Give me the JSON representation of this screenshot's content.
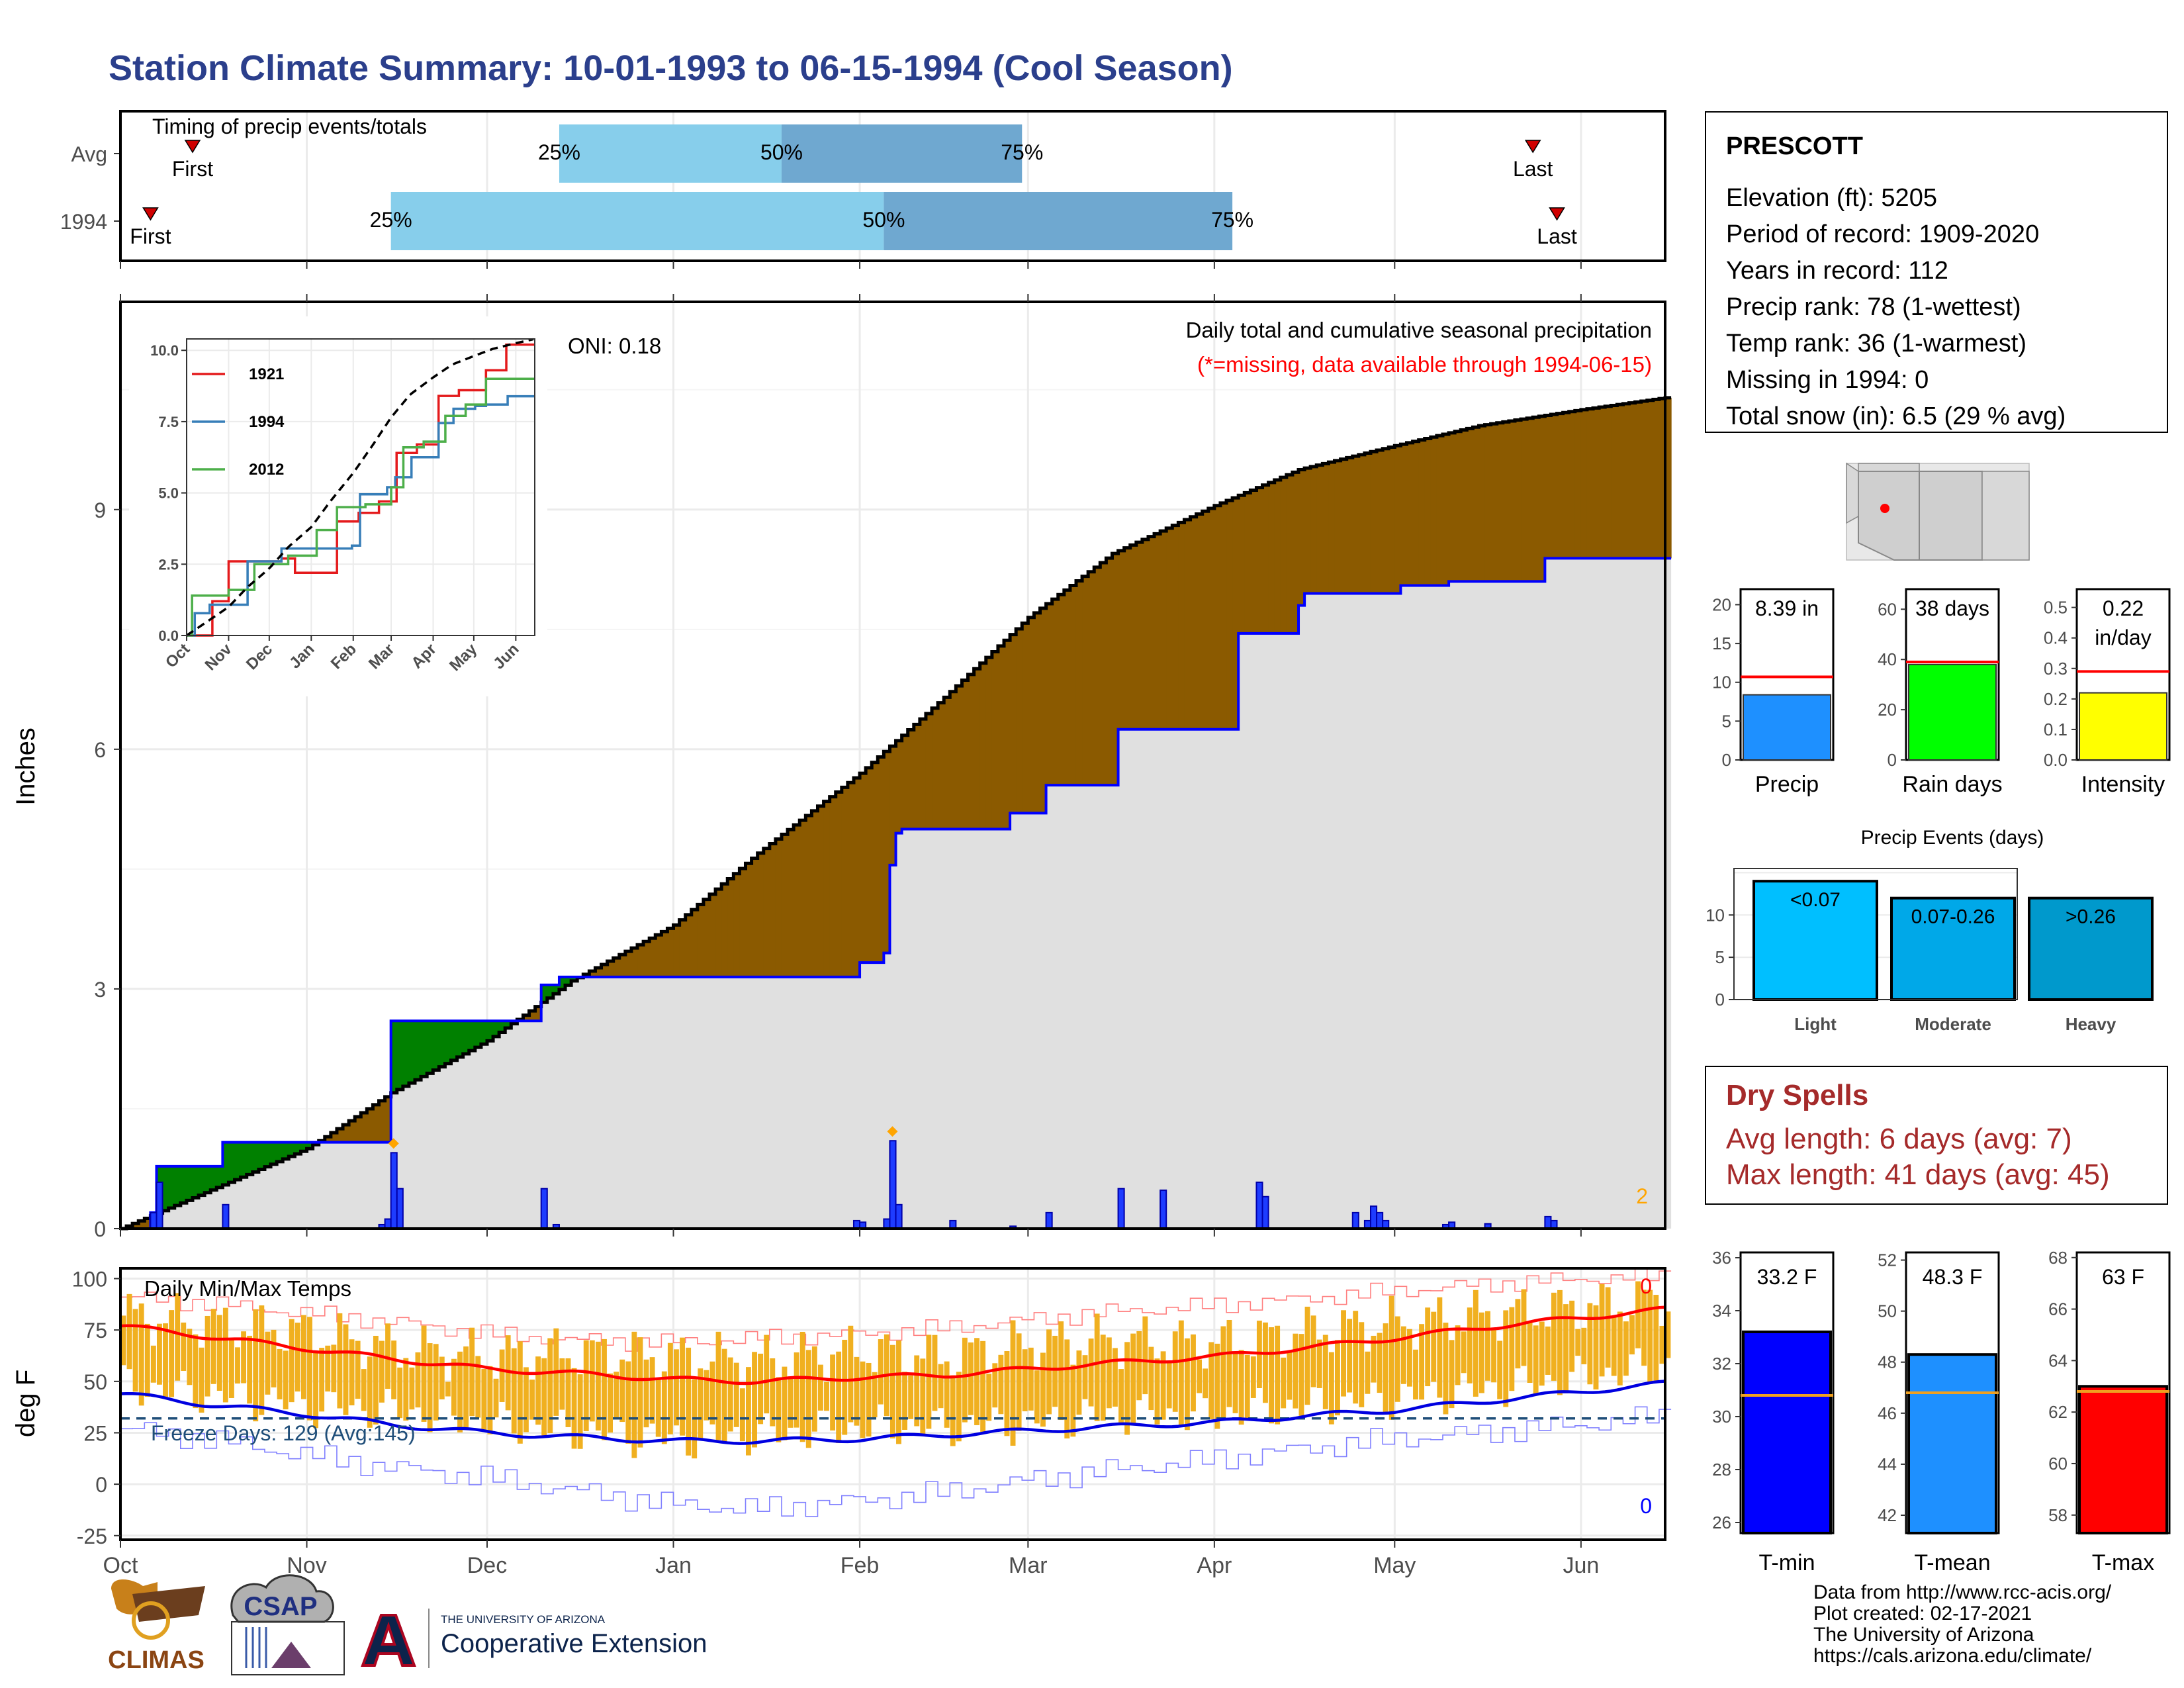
{
  "title": "Station Climate Summary: 10-01-1993 to 06-15-1994 (Cool Season)",
  "colors": {
    "title": "#2b3f8c",
    "q_light": "#87ceeb",
    "q_dark": "#6fa8d0",
    "brown": "#8b5a00",
    "green": "#008000",
    "grey_fill": "#e0e0e0",
    "blue": "#0000ff",
    "orange_bar": "#f0b020",
    "red": "#ff0000",
    "dry_spells": "#a52a2a"
  },
  "timing": {
    "title": "Timing of precip events/totals",
    "rows": [
      {
        "label": "Avg",
        "first_label": "First",
        "last_label": "Last",
        "first": "1993-10-13",
        "last": "1994-05-24",
        "q25": "1993-12-13",
        "q50": "1994-01-19",
        "q75": "1994-02-28",
        "q25_label": "25%",
        "q50_label": "50%",
        "q75_label": "75%"
      },
      {
        "label": "1994",
        "first_label": "First",
        "last_label": "Last",
        "first": "1993-10-06",
        "last": "1994-05-28",
        "q25": "1993-11-15",
        "q50": "1994-02-05",
        "q75": "1994-04-04",
        "q25_label": "25%",
        "q50_label": "50%",
        "q75_label": "75%"
      }
    ]
  },
  "precip_panel": {
    "title": "Daily total and cumulative seasonal precipitation",
    "subtitle": "(*=missing, data available through 1994-06-15)",
    "oni": "ONI: 0.18",
    "ylabel": "Inches",
    "yticks": [
      "0",
      "3",
      "6",
      "9"
    ],
    "corner_count": "2",
    "xticks": [
      "Oct",
      "Nov",
      "Dec",
      "Jan",
      "Feb",
      "Mar",
      "Apr",
      "May",
      "Jun"
    ]
  },
  "inset": {
    "yticks": [
      "0.0",
      "2.5",
      "5.0",
      "7.5",
      "10.0"
    ],
    "xticks": [
      "Oct",
      "Nov",
      "Dec",
      "Jan",
      "Feb",
      "Mar",
      "Apr",
      "May",
      "Jun"
    ],
    "legend": [
      {
        "name": "1921",
        "color": "#e41a1c"
      },
      {
        "name": "1994",
        "color": "#377eb8"
      },
      {
        "name": "2012",
        "color": "#4daf4a"
      }
    ]
  },
  "temp_panel": {
    "title": "Daily Min/Max Temps",
    "freeze_label": "Freeze Days: 129 (Avg:145)",
    "ylabel": "deg F",
    "yticks": [
      "-25",
      "0",
      "25",
      "50",
      "75",
      "100"
    ],
    "xticks": [
      "Oct",
      "Nov",
      "Dec",
      "Jan",
      "Feb",
      "Mar",
      "Apr",
      "May",
      "Jun"
    ],
    "count_high": "0",
    "count_low": "0"
  },
  "station": {
    "name": "PRESCOTT",
    "lines": [
      "Elevation (ft): 5205",
      "Period of record: 1909-2020",
      "Years in record: 112",
      "Precip rank: 78 (1-wettest)",
      "Temp rank: 36 (1-warmest)",
      "Missing in 1994: 0",
      "Total snow (in): 6.5 (29 % avg)"
    ]
  },
  "mini_bars": [
    {
      "label": "Precip",
      "value_text": "8.39 in",
      "value": 8.39,
      "avg": 10.7,
      "ymax": 22,
      "ticks": [
        "0",
        "5",
        "10",
        "15",
        "20"
      ],
      "tick_vals": [
        0,
        5,
        10,
        15,
        20
      ],
      "color": "#1e90ff"
    },
    {
      "label": "Rain days",
      "value_text": "38 days",
      "value": 38,
      "avg": 39,
      "ymax": 68,
      "ticks": [
        "0",
        "20",
        "40",
        "60"
      ],
      "tick_vals": [
        0,
        20,
        40,
        60
      ],
      "color": "#00ff00"
    },
    {
      "label": "Intensity",
      "value_text": "0.22\nin/day",
      "value": 0.22,
      "avg": 0.29,
      "ymax": 0.56,
      "ticks": [
        "0.0",
        "0.1",
        "0.2",
        "0.3",
        "0.4",
        "0.5"
      ],
      "tick_vals": [
        0,
        0.1,
        0.2,
        0.3,
        0.4,
        0.5
      ],
      "color": "#ffff00"
    }
  ],
  "precip_events": {
    "title": "Precip Events (days)",
    "yticks": [
      "0",
      "5",
      "10"
    ],
    "bars": [
      {
        "category": "Light",
        "label": "<0.07",
        "value": 14,
        "color": "#00bfff"
      },
      {
        "category": "Moderate",
        "label": "0.07-0.26",
        "value": 12,
        "color": "#00a8e8"
      },
      {
        "category": "Heavy",
        "label": ">0.26",
        "value": 12,
        "color": "#0099cc"
      }
    ]
  },
  "dry_spells": {
    "title": "Dry Spells",
    "avg_line": "Avg length: 6 days (avg: 7)",
    "max_line": "Max length: 41 days (avg: 45)"
  },
  "temp_bars": [
    {
      "label": "T-min",
      "value_text": "33.2 F",
      "value": 33.2,
      "avg": 30.8,
      "ymin": 25.6,
      "ymax": 36.2,
      "ticks": [
        "26",
        "28",
        "30",
        "32",
        "34",
        "36"
      ],
      "tick_vals": [
        26,
        28,
        30,
        32,
        34,
        36
      ],
      "color": "#0000ff"
    },
    {
      "label": "T-mean",
      "value_text": "48.3 F",
      "value": 48.3,
      "avg": 46.8,
      "ymin": 41.3,
      "ymax": 52.3,
      "ticks": [
        "42",
        "44",
        "46",
        "48",
        "50",
        "52"
      ],
      "tick_vals": [
        42,
        44,
        46,
        48,
        50,
        52
      ],
      "color": "#1e90ff"
    },
    {
      "label": "T-max",
      "value_text": "63 F",
      "value": 63.0,
      "avg": 62.8,
      "ymin": 57.3,
      "ymax": 68.2,
      "ticks": [
        "58",
        "60",
        "62",
        "64",
        "66",
        "68"
      ],
      "tick_vals": [
        58,
        60,
        62,
        64,
        66,
        68
      ],
      "color": "#ff0000"
    }
  ],
  "credits": {
    "lines": [
      "Data from http://www.rcc-acis.org/",
      "Plot created: 02-17-2021",
      "The University of Arizona",
      "https://cals.arizona.edu/climate/"
    ],
    "logo_climas": "CLIMAS",
    "logo_csap": "CSAP",
    "logo_ua_small": "THE UNIVERSITY OF ARIZONA",
    "logo_ua_big": "Cooperative Extension"
  },
  "chart_data": {
    "type": "area",
    "title": "Daily total and cumulative seasonal precipitation",
    "ylabel": "Inches",
    "ylim": [
      0,
      11.6
    ],
    "season_start": "1993-10-01",
    "season_end": "1994-06-15",
    "avg_cumulative": {
      "x": [
        "1993-10-01",
        "1993-10-15",
        "1993-11-01",
        "1993-11-15",
        "1993-12-01",
        "1993-12-15",
        "1994-01-01",
        "1994-01-15",
        "1994-02-01",
        "1994-02-15",
        "1994-03-01",
        "1994-03-15",
        "1994-04-01",
        "1994-04-15",
        "1994-05-01",
        "1994-05-15",
        "1994-06-01",
        "1994-06-15"
      ],
      "y": [
        0.0,
        0.45,
        1.0,
        1.7,
        2.35,
        3.1,
        3.8,
        4.7,
        5.7,
        6.65,
        7.65,
        8.45,
        9.05,
        9.5,
        9.8,
        10.05,
        10.25,
        10.4
      ]
    },
    "observed_cumulative": {
      "x": [
        "1993-10-01",
        "1993-10-06",
        "1993-10-07",
        "1993-10-17",
        "1993-10-18",
        "1993-11-14",
        "1993-11-15",
        "1993-12-09",
        "1993-12-10",
        "1993-12-13",
        "1994-01-31",
        "1994-02-01",
        "1994-02-05",
        "1994-02-06",
        "1994-02-07",
        "1994-02-08",
        "1994-02-25",
        "1994-02-26",
        "1994-03-03",
        "1994-03-04",
        "1994-03-15",
        "1994-03-16",
        "1994-04-04",
        "1994-04-05",
        "1994-04-14",
        "1994-04-15",
        "1994-04-16",
        "1994-05-01",
        "1994-05-02",
        "1994-05-09",
        "1994-05-10",
        "1994-05-25",
        "1994-05-26",
        "1994-06-15"
      ],
      "y": [
        0.0,
        0.2,
        0.78,
        0.78,
        1.08,
        1.08,
        2.6,
        2.6,
        3.05,
        3.15,
        3.15,
        3.33,
        3.45,
        4.55,
        4.95,
        5.0,
        5.0,
        5.2,
        5.2,
        5.55,
        5.55,
        6.25,
        6.25,
        7.45,
        7.45,
        7.8,
        7.95,
        7.95,
        8.05,
        8.05,
        8.1,
        8.1,
        8.39,
        8.39
      ]
    },
    "daily_precip": [
      {
        "date": "1993-10-06",
        "value": 0.2
      },
      {
        "date": "1993-10-07",
        "value": 0.58
      },
      {
        "date": "1993-10-18",
        "value": 0.3
      },
      {
        "date": "1993-11-13",
        "value": 0.05
      },
      {
        "date": "1993-11-14",
        "value": 0.12
      },
      {
        "date": "1993-11-15",
        "value": 0.95
      },
      {
        "date": "1993-11-16",
        "value": 0.5
      },
      {
        "date": "1993-12-10",
        "value": 0.5
      },
      {
        "date": "1993-12-12",
        "value": 0.05
      },
      {
        "date": "1994-01-31",
        "value": 0.1
      },
      {
        "date": "1994-02-01",
        "value": 0.08
      },
      {
        "date": "1994-02-05",
        "value": 0.12
      },
      {
        "date": "1994-02-06",
        "value": 1.1
      },
      {
        "date": "1994-02-07",
        "value": 0.3
      },
      {
        "date": "1994-02-16",
        "value": 0.1
      },
      {
        "date": "1994-02-26",
        "value": 0.03
      },
      {
        "date": "1994-03-04",
        "value": 0.2
      },
      {
        "date": "1994-03-16",
        "value": 0.5
      },
      {
        "date": "1994-03-23",
        "value": 0.48
      },
      {
        "date": "1994-04-08",
        "value": 0.58
      },
      {
        "date": "1994-04-09",
        "value": 0.4
      },
      {
        "date": "1994-04-24",
        "value": 0.2
      },
      {
        "date": "1994-04-26",
        "value": 0.1
      },
      {
        "date": "1994-04-27",
        "value": 0.28
      },
      {
        "date": "1994-04-28",
        "value": 0.2
      },
      {
        "date": "1994-04-29",
        "value": 0.1
      },
      {
        "date": "1994-05-09",
        "value": 0.05
      },
      {
        "date": "1994-05-10",
        "value": 0.08
      },
      {
        "date": "1994-05-16",
        "value": 0.06
      },
      {
        "date": "1994-05-26",
        "value": 0.15
      },
      {
        "date": "1994-05-27",
        "value": 0.1
      }
    ],
    "inset_series": [
      {
        "name": "1921",
        "x": [
          "1993-10-01",
          "1993-10-20",
          "1993-11-01",
          "1993-12-10",
          "1993-12-20",
          "1994-01-20",
          "1994-02-05",
          "1994-02-20",
          "1994-03-05",
          "1994-03-20",
          "1994-04-05",
          "1994-04-20",
          "1994-05-10",
          "1994-05-25",
          "1994-06-15"
        ],
        "y": [
          0,
          1.2,
          2.6,
          2.7,
          2.2,
          4.0,
          4.3,
          4.7,
          6.4,
          6.7,
          8.4,
          8.6,
          9.3,
          10.2,
          10.2
        ]
      },
      {
        "name": "1994",
        "x": [
          "1993-10-01",
          "1993-10-07",
          "1993-10-18",
          "1993-11-15",
          "1993-12-10",
          "1994-01-31",
          "1994-02-06",
          "1994-02-26",
          "1994-03-04",
          "1994-03-16",
          "1994-04-05",
          "1994-04-16",
          "1994-05-02",
          "1994-05-10",
          "1994-05-26",
          "1994-06-15"
        ],
        "y": [
          0,
          0.78,
          1.08,
          2.6,
          3.05,
          3.15,
          4.95,
          5.2,
          5.55,
          6.25,
          7.45,
          7.95,
          8.05,
          8.1,
          8.39,
          8.39
        ]
      },
      {
        "name": "2012",
        "x": [
          "1993-10-01",
          "1993-10-05",
          "1993-11-01",
          "1993-11-20",
          "1993-12-15",
          "1994-01-05",
          "1994-01-20",
          "1994-02-10",
          "1994-03-01",
          "1994-03-10",
          "1994-03-25",
          "1994-04-10",
          "1994-04-25",
          "1994-05-10",
          "1994-06-15"
        ],
        "y": [
          0,
          1.4,
          1.6,
          2.5,
          2.8,
          3.7,
          4.5,
          4.6,
          5.2,
          6.6,
          6.8,
          7.7,
          8.1,
          9.0,
          9.0
        ]
      },
      {
        "name": "avg",
        "x": [
          "1993-10-01",
          "1993-10-15",
          "1993-11-01",
          "1993-11-15",
          "1993-12-01",
          "1993-12-15",
          "1994-01-01",
          "1994-01-15",
          "1994-02-01",
          "1994-02-15",
          "1994-03-01",
          "1994-03-15",
          "1994-04-01",
          "1994-04-15",
          "1994-05-01",
          "1994-05-15",
          "1994-06-01",
          "1994-06-15"
        ],
        "y": [
          0.0,
          0.45,
          1.0,
          1.7,
          2.35,
          3.1,
          3.8,
          4.7,
          5.7,
          6.65,
          7.65,
          8.45,
          9.05,
          9.5,
          9.8,
          10.05,
          10.25,
          10.4
        ]
      }
    ],
    "temps": {
      "ylim": [
        -27,
        105
      ],
      "freeze_line": 32,
      "avg_max": {
        "x": [
          "1993-10-01",
          "1993-10-15",
          "1993-11-01",
          "1993-11-15",
          "1993-12-01",
          "1993-12-15",
          "1994-01-01",
          "1994-01-15",
          "1994-02-01",
          "1994-02-15",
          "1994-03-01",
          "1994-03-15",
          "1994-04-01",
          "1994-04-15",
          "1994-05-01",
          "1994-05-15",
          "1994-06-01",
          "1994-06-15"
        ],
        "y": [
          77,
          72,
          66,
          61,
          56,
          54,
          51,
          50,
          52,
          53,
          56,
          59,
          62,
          66,
          71,
          76,
          81,
          85
        ]
      },
      "avg_min": {
        "x": [
          "1993-10-01",
          "1993-10-15",
          "1993-11-01",
          "1993-11-15",
          "1993-12-01",
          "1993-12-15",
          "1994-01-01",
          "1994-01-15",
          "1994-02-01",
          "1994-02-15",
          "1994-03-01",
          "1994-03-15",
          "1994-04-01",
          "1994-04-15",
          "1994-05-01",
          "1994-05-15",
          "1994-06-01",
          "1994-06-15"
        ],
        "y": [
          44,
          39,
          34,
          29,
          25,
          23,
          21,
          21,
          22,
          24,
          26,
          28,
          30,
          33,
          36,
          40,
          45,
          49
        ]
      },
      "record_high": {
        "x": [
          "1993-10-01",
          "1993-10-15",
          "1993-11-01",
          "1993-11-15",
          "1993-12-01",
          "1993-12-15",
          "1994-01-01",
          "1994-01-15",
          "1994-02-01",
          "1994-02-15",
          "1994-03-01",
          "1994-03-15",
          "1994-04-01",
          "1994-04-15",
          "1994-05-01",
          "1994-05-15",
          "1994-06-01",
          "1994-06-15"
        ],
        "y": [
          91,
          88,
          83,
          79,
          73,
          70,
          69,
          71,
          73,
          76,
          80,
          84,
          87,
          90,
          94,
          97,
          100,
          101
        ]
      },
      "record_low": {
        "x": [
          "1993-10-01",
          "1993-10-15",
          "1993-11-01",
          "1993-11-15",
          "1993-12-01",
          "1993-12-15",
          "1994-01-01",
          "1994-01-15",
          "1994-02-01",
          "1994-02-15",
          "1994-03-01",
          "1994-03-15",
          "1994-04-01",
          "1994-04-15",
          "1994-05-01",
          "1994-05-15",
          "1994-06-01",
          "1994-06-15"
        ],
        "y": [
          27,
          22,
          14,
          8,
          3,
          -3,
          -10,
          -12,
          -8,
          -4,
          2,
          7,
          12,
          17,
          22,
          25,
          29,
          33
        ]
      },
      "daily_range_1994": {
        "x": [
          "1993-10-01",
          "1993-10-15",
          "1993-11-01",
          "1993-11-15",
          "1993-12-01",
          "1993-12-15",
          "1994-01-01",
          "1994-01-15",
          "1994-02-01",
          "1994-02-15",
          "1994-03-01",
          "1994-03-15",
          "1994-04-01",
          "1994-04-15",
          "1994-05-01",
          "1994-05-15",
          "1994-06-01",
          "1994-06-15"
        ],
        "high": [
          82,
          78,
          74,
          66,
          62,
          64,
          62,
          60,
          65,
          62,
          68,
          70,
          68,
          74,
          78,
          82,
          86,
          90
        ],
        "low": [
          48,
          44,
          38,
          36,
          30,
          26,
          22,
          24,
          28,
          28,
          30,
          34,
          34,
          38,
          42,
          46,
          52,
          58
        ]
      }
    },
    "inset_ylim": [
      0,
      10.4
    ]
  }
}
